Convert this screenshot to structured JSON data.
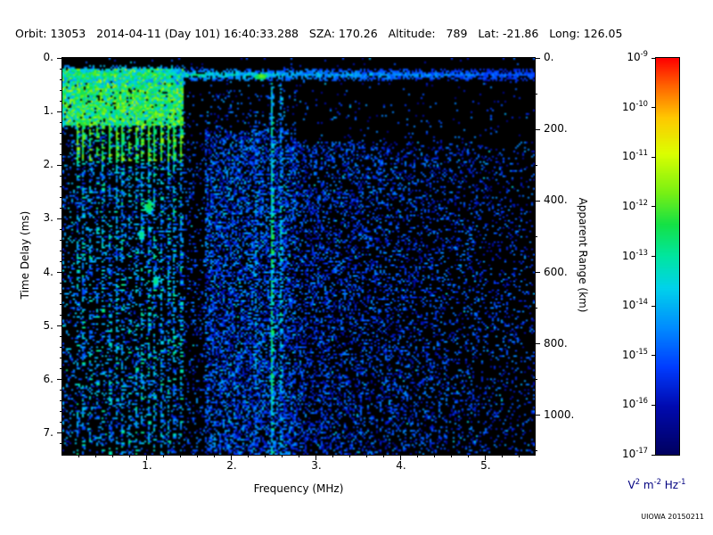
{
  "header": {
    "text": "Orbit: 13053   2014-04-11 (Day 101) 16:40:33.288   SZA: 170.26   Altitude:   789   Lat: -21.86   Long: 126.05",
    "fields": {
      "orbit": "13053",
      "date": "2014-04-11",
      "day_of_year": "101",
      "time": "16:40:33.288",
      "sza": "170.26",
      "altitude": "789",
      "lat": "-21.86",
      "long": "126.05"
    }
  },
  "footer": {
    "watermark": "UIOWA 20150211"
  },
  "chart_data": {
    "type": "heatmap",
    "xlabel": "Frequency (MHz)",
    "ylabel_left": "Time Delay (ms)",
    "ylabel_right": "Apparent Range (km)",
    "x_range_mhz": [
      0,
      5.58
    ],
    "x_ticks": {
      "values": [
        1,
        2,
        3,
        4,
        5
      ],
      "labels": [
        "1.",
        "2.",
        "3.",
        "4.",
        "5."
      ]
    },
    "y_left_range_ms": [
      0,
      7.4
    ],
    "y_left_ticks": {
      "values": [
        0,
        1,
        2,
        3,
        4,
        5,
        6,
        7
      ],
      "labels": [
        "0.",
        "1.",
        "2.",
        "3.",
        "4.",
        "5.",
        "6.",
        "7."
      ]
    },
    "y_right_range_km": [
      0,
      1110
    ],
    "y_right_ticks": {
      "values": [
        0,
        200,
        400,
        600,
        800,
        1000
      ],
      "labels": [
        "0.",
        "200.",
        "400.",
        "600.",
        "800.",
        "1000."
      ]
    },
    "colorbar": {
      "scale": "log",
      "tick_exponents": [
        -9,
        -10,
        -11,
        -12,
        -13,
        -14,
        -15,
        -16,
        -17
      ],
      "tick_labels": [
        "10⁻⁹",
        "10⁻¹⁰",
        "10⁻¹¹",
        "10⁻¹²",
        "10⁻¹³",
        "10⁻¹⁴",
        "10⁻¹⁵",
        "10⁻¹⁶",
        "10⁻¹⁷"
      ],
      "unit_parts": [
        [
          "V",
          "2"
        ],
        [
          "m",
          "-2"
        ],
        [
          "Hz",
          "-1"
        ]
      ],
      "unit_text": "V² m⁻² Hz⁻¹",
      "colormap": "rainbow: red (1e-9) -> orange -> yellow -> green -> cyan -> blue -> navy (1e-17)"
    },
    "features": [
      {
        "name": "transmit pulse horizontal band",
        "delay_ms": 0.3,
        "freq_mhz": [
          0.1,
          5.5
        ],
        "level": "~1e-13 (green) at low frequency fading to ~1e-15 (blue) at high frequency"
      },
      {
        "name": "electron cyclotron / plasma vertical echo stripes",
        "freq_mhz": [
          0.15,
          1.4
        ],
        "spacing_mhz": 0.077,
        "delay_ms": [
          0.25,
          7.4
        ],
        "level": "~1e-12 to 1e-14 (green/cyan), solid bright mass above ~1.2 ms, segmented below"
      },
      {
        "name": "diffuse blue noise speckle",
        "freq_mhz": [
          1.7,
          5.5
        ],
        "delay_ms": [
          1.4,
          7.4
        ],
        "level": "~1e-16 to 1e-15 (blue)",
        "density": "decreases with increasing frequency"
      },
      {
        "name": "narrowband interference line",
        "freq_mhz": 2.47,
        "delay_ms": [
          0.45,
          7.4
        ],
        "level": "~1e-15 (light blue/cyan), full height"
      },
      {
        "name": "quiet region near noise floor",
        "freq_mhz": [
          1.7,
          5.5
        ],
        "delay_ms": [
          0,
          1.3
        ],
        "level": "black, below 1e-17"
      }
    ],
    "render": {
      "seed": 20150211,
      "half_res": [
        265,
        223
      ],
      "stripes": {
        "f_start": 0.16,
        "f_end": 1.4,
        "spacing_mhz": 0.077
      },
      "band": {
        "delay_ms": 0.3
      },
      "vlines": [
        {
          "f_mhz": 2.47,
          "density": 0.85,
          "v": 0.3,
          "spread": 0.22
        },
        {
          "f_mhz": 2.57,
          "density": 0.45,
          "v": 0.26,
          "spread": 0.18
        },
        {
          "f_mhz": 2.28,
          "density": 0.35,
          "v": 0.2,
          "spread": 0.15
        }
      ],
      "blobs": [
        {
          "f_mhz": 2.33,
          "delay_ms": 0.32,
          "rw": 4,
          "rh": 2,
          "v": 0.62
        },
        {
          "f_mhz": 1.02,
          "delay_ms": 2.75,
          "rw": 3,
          "rh": 4,
          "v": 0.55
        },
        {
          "f_mhz": 0.93,
          "delay_ms": 3.3,
          "rw": 2,
          "rh": 3,
          "v": 0.5
        },
        {
          "f_mhz": 1.1,
          "delay_ms": 4.15,
          "rw": 2,
          "rh": 3,
          "v": 0.5
        }
      ]
    }
  }
}
